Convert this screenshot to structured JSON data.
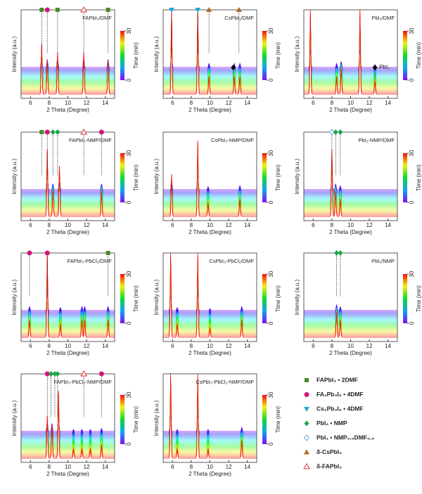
{
  "chart_data": [
    {
      "type": "waterfall",
      "title": "FAPbI₃/DMF",
      "xlabel": "2 Theta (Degree)",
      "ylabel": "Intensity (a.u.)",
      "xlim": [
        5,
        15
      ],
      "xticks": [
        6,
        8,
        10,
        12,
        14
      ],
      "ylim": [
        0,
        1
      ],
      "clabel": "Time (min)",
      "clim": [
        0,
        30
      ],
      "cticks": [
        0,
        30
      ],
      "peaks": {
        "x": [
          7.2,
          7.8,
          8.9,
          11.7,
          14.3
        ],
        "values": [
          0.6,
          0.4,
          0.5,
          0.5,
          0.4
        ]
      },
      "markers": [
        {
          "x": 7.2,
          "symbol": "square"
        },
        {
          "x": 7.8,
          "symbol": "circle"
        },
        {
          "x": 8.9,
          "symbol": "square"
        },
        {
          "x": 11.7,
          "symbol": "open-triangle"
        },
        {
          "x": 14.3,
          "symbol": "square"
        }
      ]
    },
    {
      "type": "waterfall",
      "title": "CsPbI₃/DMF",
      "xlabel": "2 Theta (Degree)",
      "ylabel": "Intensity (a.u.)",
      "xlim": [
        5,
        15
      ],
      "xticks": [
        6,
        8,
        10,
        12,
        14
      ],
      "ylim": [
        0,
        1
      ],
      "clabel": "Time (min)",
      "clim": [
        0,
        30
      ],
      "cticks": [
        0,
        30
      ],
      "peaks": {
        "x": [
          5.9,
          8.7,
          9.9,
          12.6,
          13.2
        ],
        "values": [
          1.0,
          1.0,
          0.2,
          0.2,
          0.2
        ]
      },
      "markers": [
        {
          "x": 5.9,
          "symbol": "cyan-triangle"
        },
        {
          "x": 8.7,
          "symbol": "cyan-triangle"
        },
        {
          "x": 9.9,
          "symbol": "brown-triangle"
        },
        {
          "x": 13.1,
          "symbol": "brown-triangle"
        },
        {
          "x": 12.5,
          "symbol": "black-diamond"
        }
      ]
    },
    {
      "type": "waterfall",
      "title": "PbI₂/DMF",
      "xlabel": "2 Theta (Degree)",
      "ylabel": "Intensity (a.u.)",
      "xlim": [
        5,
        15
      ],
      "xticks": [
        6,
        8,
        10,
        12,
        14
      ],
      "ylim": [
        0,
        1
      ],
      "clabel": "Time (min)",
      "clim": [
        0,
        30
      ],
      "cticks": [
        0,
        30
      ],
      "peaks": {
        "x": [
          5.7,
          8.5,
          9.0,
          11.0,
          12.6
        ],
        "values": [
          1.0,
          0.2,
          0.3,
          1.0,
          0.15
        ]
      },
      "markers": [
        {
          "x": 12.6,
          "symbol": "black-diamond",
          "label": "PbI₂"
        }
      ]
    },
    {
      "type": "waterfall",
      "title": "FAPbI₃-NMP/DMF",
      "xlabel": "2 Theta (Degree)",
      "ylabel": "Intensity (a.u.)",
      "xlim": [
        5,
        15
      ],
      "xticks": [
        6,
        8,
        10,
        12,
        14
      ],
      "ylim": [
        0,
        1
      ],
      "clabel": "Time (min)",
      "clim": [
        0,
        30
      ],
      "cticks": [
        0,
        30
      ],
      "peaks": {
        "x": [
          7.8,
          8.4,
          9.1,
          13.6
        ],
        "values": [
          0.8,
          0.3,
          0.6,
          0.3
        ]
      },
      "markers": [
        {
          "x": 7.2,
          "symbol": "square"
        },
        {
          "x": 7.8,
          "symbol": "circle"
        },
        {
          "x": 8.4,
          "symbol": "diamond"
        },
        {
          "x": 8.9,
          "symbol": "diamond"
        },
        {
          "x": 11.7,
          "symbol": "open-triangle"
        },
        {
          "x": 13.6,
          "symbol": "circle"
        }
      ]
    },
    {
      "type": "waterfall",
      "title": "CsPbI₃-NMP/DMF",
      "xlabel": "2 Theta (Degree)",
      "ylabel": "Intensity (a.u.)",
      "xlim": [
        5,
        15
      ],
      "xticks": [
        6,
        8,
        10,
        12,
        14
      ],
      "ylim": [
        0,
        1
      ],
      "clabel": "Time (min)",
      "clim": [
        0,
        30
      ],
      "cticks": [
        0,
        30
      ],
      "peaks": {
        "x": [
          5.9,
          8.7,
          9.8,
          13.2
        ],
        "values": [
          0.5,
          0.9,
          0.15,
          0.2
        ]
      },
      "markers": []
    },
    {
      "type": "waterfall",
      "title": "PbI₂-NMP/DMF",
      "xlabel": "2 Theta (Degree)",
      "ylabel": "Intensity (a.u.)",
      "xlim": [
        5,
        15
      ],
      "xticks": [
        6,
        8,
        10,
        12,
        14
      ],
      "ylim": [
        0,
        1
      ],
      "clabel": "Time (min)",
      "clim": [
        0,
        30
      ],
      "cticks": [
        0,
        30
      ],
      "peaks": {
        "x": [
          8.0,
          8.4,
          8.9
        ],
        "values": [
          0.8,
          0.3,
          0.2
        ]
      },
      "markers": [
        {
          "x": 8.0,
          "symbol": "open-diamond"
        },
        {
          "x": 8.4,
          "symbol": "diamond"
        },
        {
          "x": 8.9,
          "symbol": "diamond"
        }
      ]
    },
    {
      "type": "waterfall",
      "title": "FAPbI₃-PbCl₂/DMF",
      "xlabel": "2 Theta (Degree)",
      "ylabel": "Intensity (a.u.)",
      "xlim": [
        5,
        15
      ],
      "xticks": [
        6,
        8,
        10,
        12,
        14
      ],
      "ylim": [
        0,
        1
      ],
      "clabel": "Time (min)",
      "clim": [
        0,
        30
      ],
      "cticks": [
        0,
        30
      ],
      "peaks": {
        "x": [
          5.9,
          7.8,
          9.2,
          11.5,
          11.8,
          14.3
        ],
        "values": [
          0.2,
          1.0,
          0.15,
          0.2,
          0.2,
          0.2
        ]
      },
      "markers": [
        {
          "x": 5.9,
          "symbol": "circle"
        },
        {
          "x": 7.8,
          "symbol": "circle"
        },
        {
          "x": 14.3,
          "symbol": "square"
        }
      ]
    },
    {
      "type": "waterfall",
      "title": "CsPbI₃-PbCl₂/DMF",
      "xlabel": "2 Theta (Degree)",
      "ylabel": "Intensity (a.u.)",
      "xlim": [
        5,
        15
      ],
      "xticks": [
        6,
        8,
        10,
        12,
        14
      ],
      "ylim": [
        0,
        1
      ],
      "clabel": "Time (min)",
      "clim": [
        0,
        30
      ],
      "cticks": [
        0,
        30
      ],
      "peaks": {
        "x": [
          5.8,
          6.5,
          8.7,
          10.0,
          13.4
        ],
        "values": [
          1.0,
          0.15,
          1.0,
          0.1,
          0.2
        ]
      },
      "markers": []
    },
    {
      "type": "waterfall",
      "title": "PbI₂/NMP",
      "xlabel": "2 Theta (Degree)",
      "ylabel": "Intensity (a.u.)",
      "xlim": [
        5,
        15
      ],
      "xticks": [
        6,
        8,
        10,
        12,
        14
      ],
      "ylim": [
        0,
        1
      ],
      "clabel": "Time (min)",
      "clim": [
        0,
        30
      ],
      "cticks": [
        0,
        30
      ],
      "peaks": {
        "x": [
          8.5,
          8.9
        ],
        "values": [
          0.3,
          0.2
        ]
      },
      "markers": [
        {
          "x": 8.5,
          "symbol": "diamond"
        },
        {
          "x": 8.9,
          "symbol": "diamond"
        }
      ]
    },
    {
      "type": "waterfall",
      "title": "FAPbI₃-PbCl₂-NMP/DMF",
      "xlabel": "2 Theta (Degree)",
      "ylabel": "Intensity (a.u.)",
      "xlim": [
        5,
        15
      ],
      "xticks": [
        6,
        8,
        10,
        12,
        14
      ],
      "ylim": [
        0,
        1
      ],
      "clabel": "Time (min)",
      "clim": [
        0,
        30
      ],
      "cticks": [
        0,
        30
      ],
      "peaks": {
        "x": [
          7.8,
          8.3,
          9.0,
          10.6,
          11.5,
          12.4,
          13.6
        ],
        "values": [
          0.5,
          0.4,
          0.8,
          0.1,
          0.1,
          0.1,
          0.15
        ]
      },
      "markers": [
        {
          "x": 7.8,
          "symbol": "circle"
        },
        {
          "x": 8.2,
          "symbol": "diamond"
        },
        {
          "x": 8.6,
          "symbol": "diamond"
        },
        {
          "x": 8.9,
          "symbol": "diamond"
        },
        {
          "x": 11.7,
          "symbol": "open-triangle"
        },
        {
          "x": 13.6,
          "symbol": "circle"
        }
      ]
    },
    {
      "type": "waterfall",
      "title": "CsPbI₃-PbCl₂-NMP/DMF",
      "xlabel": "2 Theta (Degree)",
      "ylabel": "Intensity (a.u.)",
      "xlim": [
        5,
        15
      ],
      "xticks": [
        6,
        8,
        10,
        12,
        14
      ],
      "ylim": [
        0,
        1
      ],
      "clabel": "Time (min)",
      "clim": [
        0,
        30
      ],
      "cticks": [
        0,
        30
      ],
      "peaks": {
        "x": [
          5.8,
          6.5,
          8.7,
          9.8,
          13.4
        ],
        "values": [
          1.0,
          0.1,
          1.0,
          0.1,
          0.2
        ]
      },
      "markers": []
    }
  ],
  "legend": [
    {
      "label": "FAPbI₃ • 2DMF",
      "symbol": "square"
    },
    {
      "label": "FA₂Pb₃I₈ • 4DMF",
      "symbol": "circle"
    },
    {
      "label": "Cs₂Pb₃I₈ • 4DMF",
      "symbol": "cyan-triangle"
    },
    {
      "label": "PbI₂ • NMP",
      "symbol": "diamond"
    },
    {
      "label": "PbI₂ • NMP₀.₅DMF₀.₅",
      "symbol": "open-diamond"
    },
    {
      "label": "δ-CsPbI₃",
      "symbol": "brown-triangle"
    },
    {
      "label": "δ-FAPbI₃",
      "symbol": "open-triangle"
    }
  ]
}
